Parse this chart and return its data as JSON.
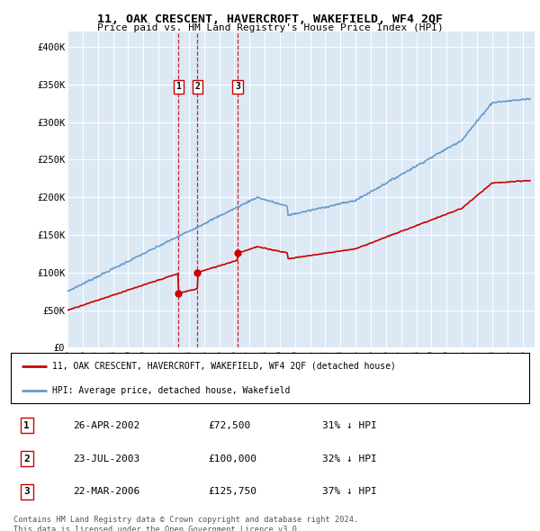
{
  "title": "11, OAK CRESCENT, HAVERCROFT, WAKEFIELD, WF4 2QF",
  "subtitle": "Price paid vs. HM Land Registry's House Price Index (HPI)",
  "background_color": "#dce9f5",
  "plot_bg_color": "#dce9f5",
  "ylabel_ticks": [
    "£0",
    "£50K",
    "£100K",
    "£150K",
    "£200K",
    "£250K",
    "£300K",
    "£350K",
    "£400K"
  ],
  "ytick_values": [
    0,
    50000,
    100000,
    150000,
    200000,
    250000,
    300000,
    350000,
    400000
  ],
  "ylim": [
    0,
    420000
  ],
  "xlim_start": 1995.0,
  "xlim_end": 2025.8,
  "sale_dates": [
    2002.32,
    2003.56,
    2006.22
  ],
  "sale_prices": [
    72500,
    100000,
    125750
  ],
  "sale_labels": [
    "1",
    "2",
    "3"
  ],
  "legend_line1": "11, OAK CRESCENT, HAVERCROFT, WAKEFIELD, WF4 2QF (detached house)",
  "legend_line2": "HPI: Average price, detached house, Wakefield",
  "table_data": [
    [
      "1",
      "26-APR-2002",
      "£72,500",
      "31% ↓ HPI"
    ],
    [
      "2",
      "23-JUL-2003",
      "£100,000",
      "32% ↓ HPI"
    ],
    [
      "3",
      "22-MAR-2006",
      "£125,750",
      "37% ↓ HPI"
    ]
  ],
  "footnote": "Contains HM Land Registry data © Crown copyright and database right 2024.\nThis data is licensed under the Open Government Licence v3.0.",
  "red_color": "#cc0000",
  "blue_color": "#6699cc",
  "dashed_color": "#cc0000"
}
